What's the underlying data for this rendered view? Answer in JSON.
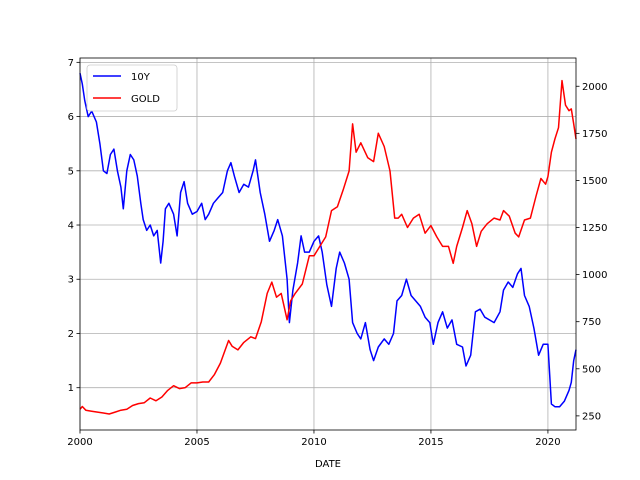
{
  "chart_data": {
    "type": "line",
    "title": "",
    "xlabel": "DATE",
    "ylabel_left": "",
    "ylabel_right": "",
    "xlim": [
      2000.0,
      2021.2
    ],
    "ylim_left": [
      0.22,
      7.08
    ],
    "ylim_right": [
      175,
      2150
    ],
    "x_ticks": [
      2000,
      2005,
      2010,
      2015,
      2020
    ],
    "y_left_ticks": [
      1,
      2,
      3,
      4,
      5,
      6,
      7
    ],
    "y_right_ticks": [
      250,
      500,
      750,
      1000,
      1250,
      1500,
      1750,
      2000
    ],
    "grid": true,
    "legend_position": "top-left",
    "series": [
      {
        "name": "10Y",
        "axis": "left",
        "color": "#0000ff",
        "points": [
          [
            2000.0,
            6.8
          ],
          [
            2000.1,
            6.6
          ],
          [
            2000.2,
            6.3
          ],
          [
            2000.35,
            6.0
          ],
          [
            2000.5,
            6.1
          ],
          [
            2000.7,
            5.9
          ],
          [
            2000.85,
            5.5
          ],
          [
            2001.0,
            5.0
          ],
          [
            2001.15,
            4.95
          ],
          [
            2001.3,
            5.3
          ],
          [
            2001.45,
            5.4
          ],
          [
            2001.6,
            5.0
          ],
          [
            2001.75,
            4.7
          ],
          [
            2001.85,
            4.3
          ],
          [
            2002.0,
            5.0
          ],
          [
            2002.15,
            5.3
          ],
          [
            2002.3,
            5.2
          ],
          [
            2002.45,
            4.9
          ],
          [
            2002.6,
            4.4
          ],
          [
            2002.7,
            4.1
          ],
          [
            2002.85,
            3.9
          ],
          [
            2003.0,
            4.0
          ],
          [
            2003.15,
            3.8
          ],
          [
            2003.3,
            3.9
          ],
          [
            2003.45,
            3.3
          ],
          [
            2003.55,
            3.7
          ],
          [
            2003.65,
            4.3
          ],
          [
            2003.8,
            4.4
          ],
          [
            2004.0,
            4.2
          ],
          [
            2004.15,
            3.8
          ],
          [
            2004.3,
            4.6
          ],
          [
            2004.45,
            4.8
          ],
          [
            2004.6,
            4.4
          ],
          [
            2004.8,
            4.2
          ],
          [
            2005.0,
            4.25
          ],
          [
            2005.2,
            4.4
          ],
          [
            2005.35,
            4.1
          ],
          [
            2005.5,
            4.2
          ],
          [
            2005.7,
            4.4
          ],
          [
            2005.9,
            4.5
          ],
          [
            2006.1,
            4.6
          ],
          [
            2006.3,
            5.0
          ],
          [
            2006.45,
            5.15
          ],
          [
            2006.6,
            4.9
          ],
          [
            2006.8,
            4.6
          ],
          [
            2007.0,
            4.75
          ],
          [
            2007.2,
            4.7
          ],
          [
            2007.4,
            5.0
          ],
          [
            2007.5,
            5.2
          ],
          [
            2007.7,
            4.6
          ],
          [
            2007.9,
            4.2
          ],
          [
            2008.1,
            3.7
          ],
          [
            2008.3,
            3.9
          ],
          [
            2008.45,
            4.1
          ],
          [
            2008.65,
            3.8
          ],
          [
            2008.85,
            3.0
          ],
          [
            2008.95,
            2.2
          ],
          [
            2009.1,
            2.8
          ],
          [
            2009.3,
            3.3
          ],
          [
            2009.45,
            3.8
          ],
          [
            2009.6,
            3.5
          ],
          [
            2009.8,
            3.5
          ],
          [
            2010.0,
            3.7
          ],
          [
            2010.2,
            3.8
          ],
          [
            2010.35,
            3.5
          ],
          [
            2010.55,
            2.9
          ],
          [
            2010.75,
            2.5
          ],
          [
            2010.95,
            3.2
          ],
          [
            2011.1,
            3.5
          ],
          [
            2011.3,
            3.3
          ],
          [
            2011.5,
            3.0
          ],
          [
            2011.65,
            2.2
          ],
          [
            2011.85,
            2.0
          ],
          [
            2012.0,
            1.9
          ],
          [
            2012.2,
            2.2
          ],
          [
            2012.4,
            1.7
          ],
          [
            2012.55,
            1.5
          ],
          [
            2012.75,
            1.75
          ],
          [
            2013.0,
            1.9
          ],
          [
            2013.2,
            1.8
          ],
          [
            2013.4,
            2.0
          ],
          [
            2013.55,
            2.6
          ],
          [
            2013.75,
            2.7
          ],
          [
            2013.95,
            3.0
          ],
          [
            2014.15,
            2.7
          ],
          [
            2014.35,
            2.6
          ],
          [
            2014.55,
            2.5
          ],
          [
            2014.75,
            2.3
          ],
          [
            2014.95,
            2.2
          ],
          [
            2015.1,
            1.8
          ],
          [
            2015.3,
            2.2
          ],
          [
            2015.5,
            2.4
          ],
          [
            2015.7,
            2.1
          ],
          [
            2015.9,
            2.25
          ],
          [
            2016.1,
            1.8
          ],
          [
            2016.35,
            1.75
          ],
          [
            2016.5,
            1.4
          ],
          [
            2016.7,
            1.6
          ],
          [
            2016.9,
            2.4
          ],
          [
            2017.1,
            2.45
          ],
          [
            2017.3,
            2.3
          ],
          [
            2017.5,
            2.25
          ],
          [
            2017.7,
            2.2
          ],
          [
            2017.95,
            2.4
          ],
          [
            2018.1,
            2.8
          ],
          [
            2018.3,
            2.95
          ],
          [
            2018.5,
            2.85
          ],
          [
            2018.7,
            3.1
          ],
          [
            2018.85,
            3.2
          ],
          [
            2019.0,
            2.7
          ],
          [
            2019.2,
            2.5
          ],
          [
            2019.4,
            2.1
          ],
          [
            2019.6,
            1.6
          ],
          [
            2019.8,
            1.8
          ],
          [
            2020.0,
            1.8
          ],
          [
            2020.15,
            0.7
          ],
          [
            2020.3,
            0.65
          ],
          [
            2020.5,
            0.65
          ],
          [
            2020.7,
            0.75
          ],
          [
            2020.9,
            0.95
          ],
          [
            2021.0,
            1.1
          ],
          [
            2021.1,
            1.5
          ],
          [
            2021.2,
            1.7
          ]
        ]
      },
      {
        "name": "GOLD",
        "axis": "right",
        "color": "#ff0000",
        "points": [
          [
            2000.0,
            285
          ],
          [
            2000.1,
            300
          ],
          [
            2000.25,
            280
          ],
          [
            2000.5,
            275
          ],
          [
            2000.75,
            270
          ],
          [
            2001.0,
            265
          ],
          [
            2001.25,
            260
          ],
          [
            2001.5,
            270
          ],
          [
            2001.75,
            280
          ],
          [
            2002.0,
            285
          ],
          [
            2002.25,
            305
          ],
          [
            2002.5,
            315
          ],
          [
            2002.75,
            320
          ],
          [
            2003.0,
            345
          ],
          [
            2003.25,
            330
          ],
          [
            2003.5,
            350
          ],
          [
            2003.75,
            385
          ],
          [
            2004.0,
            410
          ],
          [
            2004.25,
            395
          ],
          [
            2004.5,
            400
          ],
          [
            2004.75,
            425
          ],
          [
            2005.0,
            425
          ],
          [
            2005.25,
            430
          ],
          [
            2005.5,
            430
          ],
          [
            2005.75,
            470
          ],
          [
            2006.0,
            530
          ],
          [
            2006.35,
            650
          ],
          [
            2006.5,
            620
          ],
          [
            2006.75,
            600
          ],
          [
            2007.0,
            640
          ],
          [
            2007.3,
            670
          ],
          [
            2007.5,
            660
          ],
          [
            2007.75,
            750
          ],
          [
            2008.0,
            900
          ],
          [
            2008.2,
            960
          ],
          [
            2008.4,
            880
          ],
          [
            2008.6,
            900
          ],
          [
            2008.85,
            760
          ],
          [
            2009.0,
            860
          ],
          [
            2009.2,
            900
          ],
          [
            2009.5,
            950
          ],
          [
            2009.8,
            1100
          ],
          [
            2010.0,
            1100
          ],
          [
            2010.25,
            1150
          ],
          [
            2010.5,
            1200
          ],
          [
            2010.75,
            1340
          ],
          [
            2011.0,
            1360
          ],
          [
            2011.25,
            1450
          ],
          [
            2011.5,
            1550
          ],
          [
            2011.65,
            1800
          ],
          [
            2011.8,
            1650
          ],
          [
            2012.0,
            1700
          ],
          [
            2012.3,
            1620
          ],
          [
            2012.55,
            1600
          ],
          [
            2012.75,
            1750
          ],
          [
            2013.0,
            1680
          ],
          [
            2013.25,
            1550
          ],
          [
            2013.45,
            1300
          ],
          [
            2013.6,
            1300
          ],
          [
            2013.75,
            1320
          ],
          [
            2014.0,
            1250
          ],
          [
            2014.25,
            1300
          ],
          [
            2014.5,
            1320
          ],
          [
            2014.75,
            1220
          ],
          [
            2015.0,
            1260
          ],
          [
            2015.25,
            1200
          ],
          [
            2015.5,
            1150
          ],
          [
            2015.75,
            1150
          ],
          [
            2015.95,
            1060
          ],
          [
            2016.1,
            1150
          ],
          [
            2016.35,
            1250
          ],
          [
            2016.55,
            1340
          ],
          [
            2016.75,
            1270
          ],
          [
            2016.95,
            1150
          ],
          [
            2017.15,
            1230
          ],
          [
            2017.4,
            1270
          ],
          [
            2017.7,
            1300
          ],
          [
            2017.95,
            1290
          ],
          [
            2018.1,
            1340
          ],
          [
            2018.35,
            1310
          ],
          [
            2018.6,
            1220
          ],
          [
            2018.75,
            1200
          ],
          [
            2019.0,
            1290
          ],
          [
            2019.25,
            1300
          ],
          [
            2019.5,
            1420
          ],
          [
            2019.7,
            1510
          ],
          [
            2019.9,
            1480
          ],
          [
            2020.0,
            1520
          ],
          [
            2020.15,
            1650
          ],
          [
            2020.3,
            1720
          ],
          [
            2020.45,
            1780
          ],
          [
            2020.6,
            2030
          ],
          [
            2020.75,
            1900
          ],
          [
            2020.9,
            1870
          ],
          [
            2021.0,
            1880
          ],
          [
            2021.1,
            1800
          ],
          [
            2021.2,
            1720
          ]
        ]
      }
    ]
  }
}
